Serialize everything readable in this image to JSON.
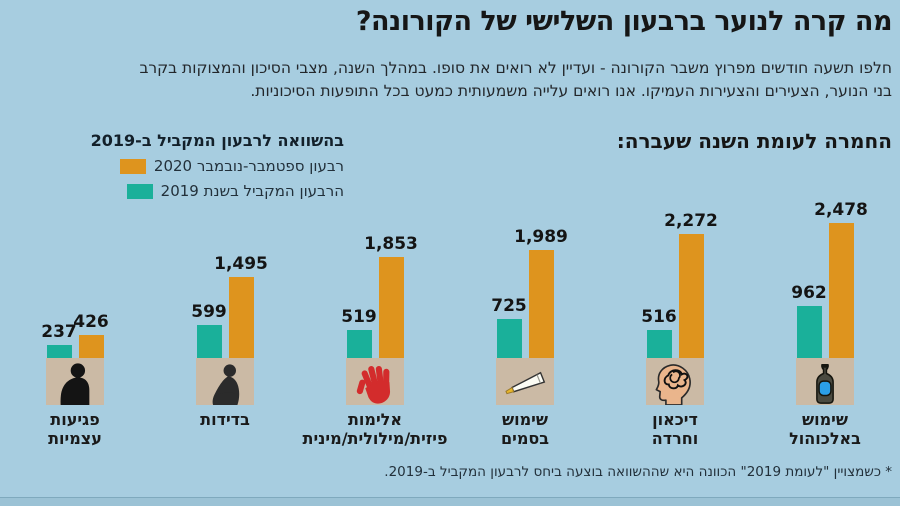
{
  "title": "מה קרה לנוער ברבעון השלישי של הקורונה?",
  "intro": {
    "line1": "חלפו תשעה חודשים מפרוץ משבר הקורונה - ועדיין לא רואים את סופו. במהלך השנה, מצבי הסיכון והמצוקות בקרב",
    "line2": "בני הנוער, הצעירים והצעירות העמיקו. אנו רואים עלייה משמעותית כמעט בכל התופעות הסיכוניות."
  },
  "legend": {
    "header": "בהשוואה לרבעון המקביל ב-2019",
    "items": [
      {
        "label": "רבעון ספטמבר-נובמבר 2020",
        "color": "#de941e"
      },
      {
        "label": "הרבעון המקביל בשנת 2019",
        "color": "#1ab09a"
      }
    ]
  },
  "section_heading": "החמרה לעומת השנה שעברה:",
  "groups": [
    {
      "label": "פגיעות\nעצמיות",
      "icon": "self-harm-icon",
      "v2019": 237,
      "v2020": 426,
      "v2019_label": "237",
      "v2020_label": "426"
    },
    {
      "label": "בדידות",
      "icon": "loneliness-icon",
      "v2019": 599,
      "v2020": 1495,
      "v2019_label": "599",
      "v2020_label": "1,495"
    },
    {
      "label": "אלימות\nפיזית/מילולית/מינית",
      "icon": "violence-hand-icon",
      "v2019": 519,
      "v2020": 1853,
      "v2019_label": "519",
      "v2020_label": "1,853"
    },
    {
      "label": "שימוש\nבסמים",
      "icon": "drugs-joint-icon",
      "v2019": 725,
      "v2020": 1989,
      "v2019_label": "725",
      "v2020_label": "1,989"
    },
    {
      "label": "דיכאון\nוחרדה",
      "icon": "depression-anxiety-icon",
      "v2019": 516,
      "v2020": 2272,
      "v2019_label": "516",
      "v2020_label": "2,272"
    },
    {
      "label": "שימוש\nבאלכוהול",
      "icon": "alcohol-bottle-icon",
      "v2019": 962,
      "v2020": 2478,
      "v2019_label": "962",
      "v2020_label": "2,478"
    }
  ],
  "footnote": "* כשמצויין \"לעומת 2019\" הכוונה היא שההשוואה בוצעה ביחס לרבעון המקביל ב-2019.",
  "colors": {
    "background": "#a7cde0",
    "bar_2020_orange": "#de941e",
    "bar_2019_teal": "#1ab09a",
    "icon_square_tan": "#cbbaa5",
    "text_dark": "#161616"
  },
  "chart_data": {
    "type": "bar",
    "title": "מה קרה לנוער ברבעון השלישי של הקורונה? — החמרה לעומת השנה שעברה",
    "categories": [
      "פגיעות עצמיות",
      "בדידות",
      "אלימות פיזית/מילולית/מינית",
      "שימוש בסמים",
      "דיכאון וחרדה",
      "שימוש באלכוהול"
    ],
    "series": [
      {
        "name": "רבעון ספטמבר-נובמבר 2020",
        "color": "#de941e",
        "values": [
          426,
          1495,
          1853,
          1989,
          2272,
          2478
        ]
      },
      {
        "name": "הרבעון המקביל בשנת 2019",
        "color": "#1ab09a",
        "values": [
          237,
          599,
          519,
          725,
          516,
          962
        ]
      }
    ],
    "xlabel": "",
    "ylabel": "",
    "ylim": [
      0,
      2478
    ],
    "grid": false,
    "legend_position": "top-left",
    "value_labels_shown": true,
    "footnote": "* כשמצויין \"לעומת 2019\" הכוונה היא שההשוואה בוצעה ביחס לרבעון המקביל ב-2019."
  }
}
